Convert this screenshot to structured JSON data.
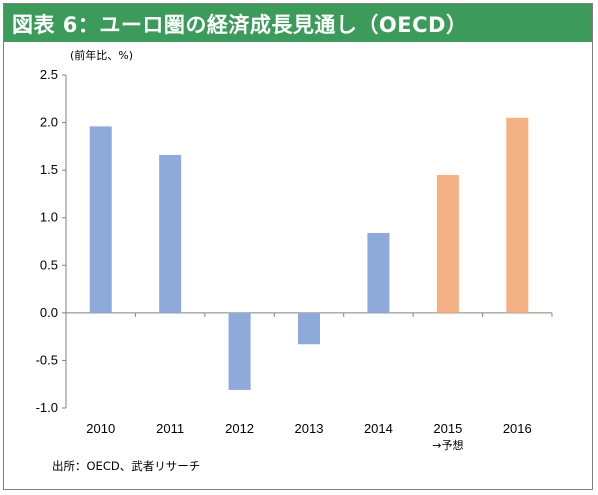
{
  "title": "図表 6：ユーロ圏の経済成長見通し（OECD）",
  "unit_label": "(前年比、%)",
  "source": "出所：OECD、武者リサーチ",
  "colors": {
    "title_bg": "#3c9a5a",
    "actual": "#8eaadb",
    "forecast": "#f4b183",
    "axis": "#808080"
  },
  "chart_data": {
    "type": "bar",
    "categories": [
      "2010",
      "2011",
      "2012",
      "2013",
      "2014",
      "2015",
      "2016"
    ],
    "category_notes": [
      "",
      "",
      "",
      "",
      "",
      "→予想",
      ""
    ],
    "values": [
      1.96,
      1.66,
      -0.81,
      -0.33,
      0.84,
      1.45,
      2.05
    ],
    "forecast_flags": [
      false,
      false,
      false,
      false,
      false,
      true,
      true
    ],
    "yticks": [
      "2.5",
      "2.0",
      "1.5",
      "1.0",
      "0.5",
      "0.0",
      "-0.5",
      "-1.0"
    ],
    "ylim": [
      -1.0,
      2.5
    ],
    "title": "",
    "xlabel": "",
    "ylabel": "(前年比、%)",
    "grid": false,
    "legend": "none"
  }
}
